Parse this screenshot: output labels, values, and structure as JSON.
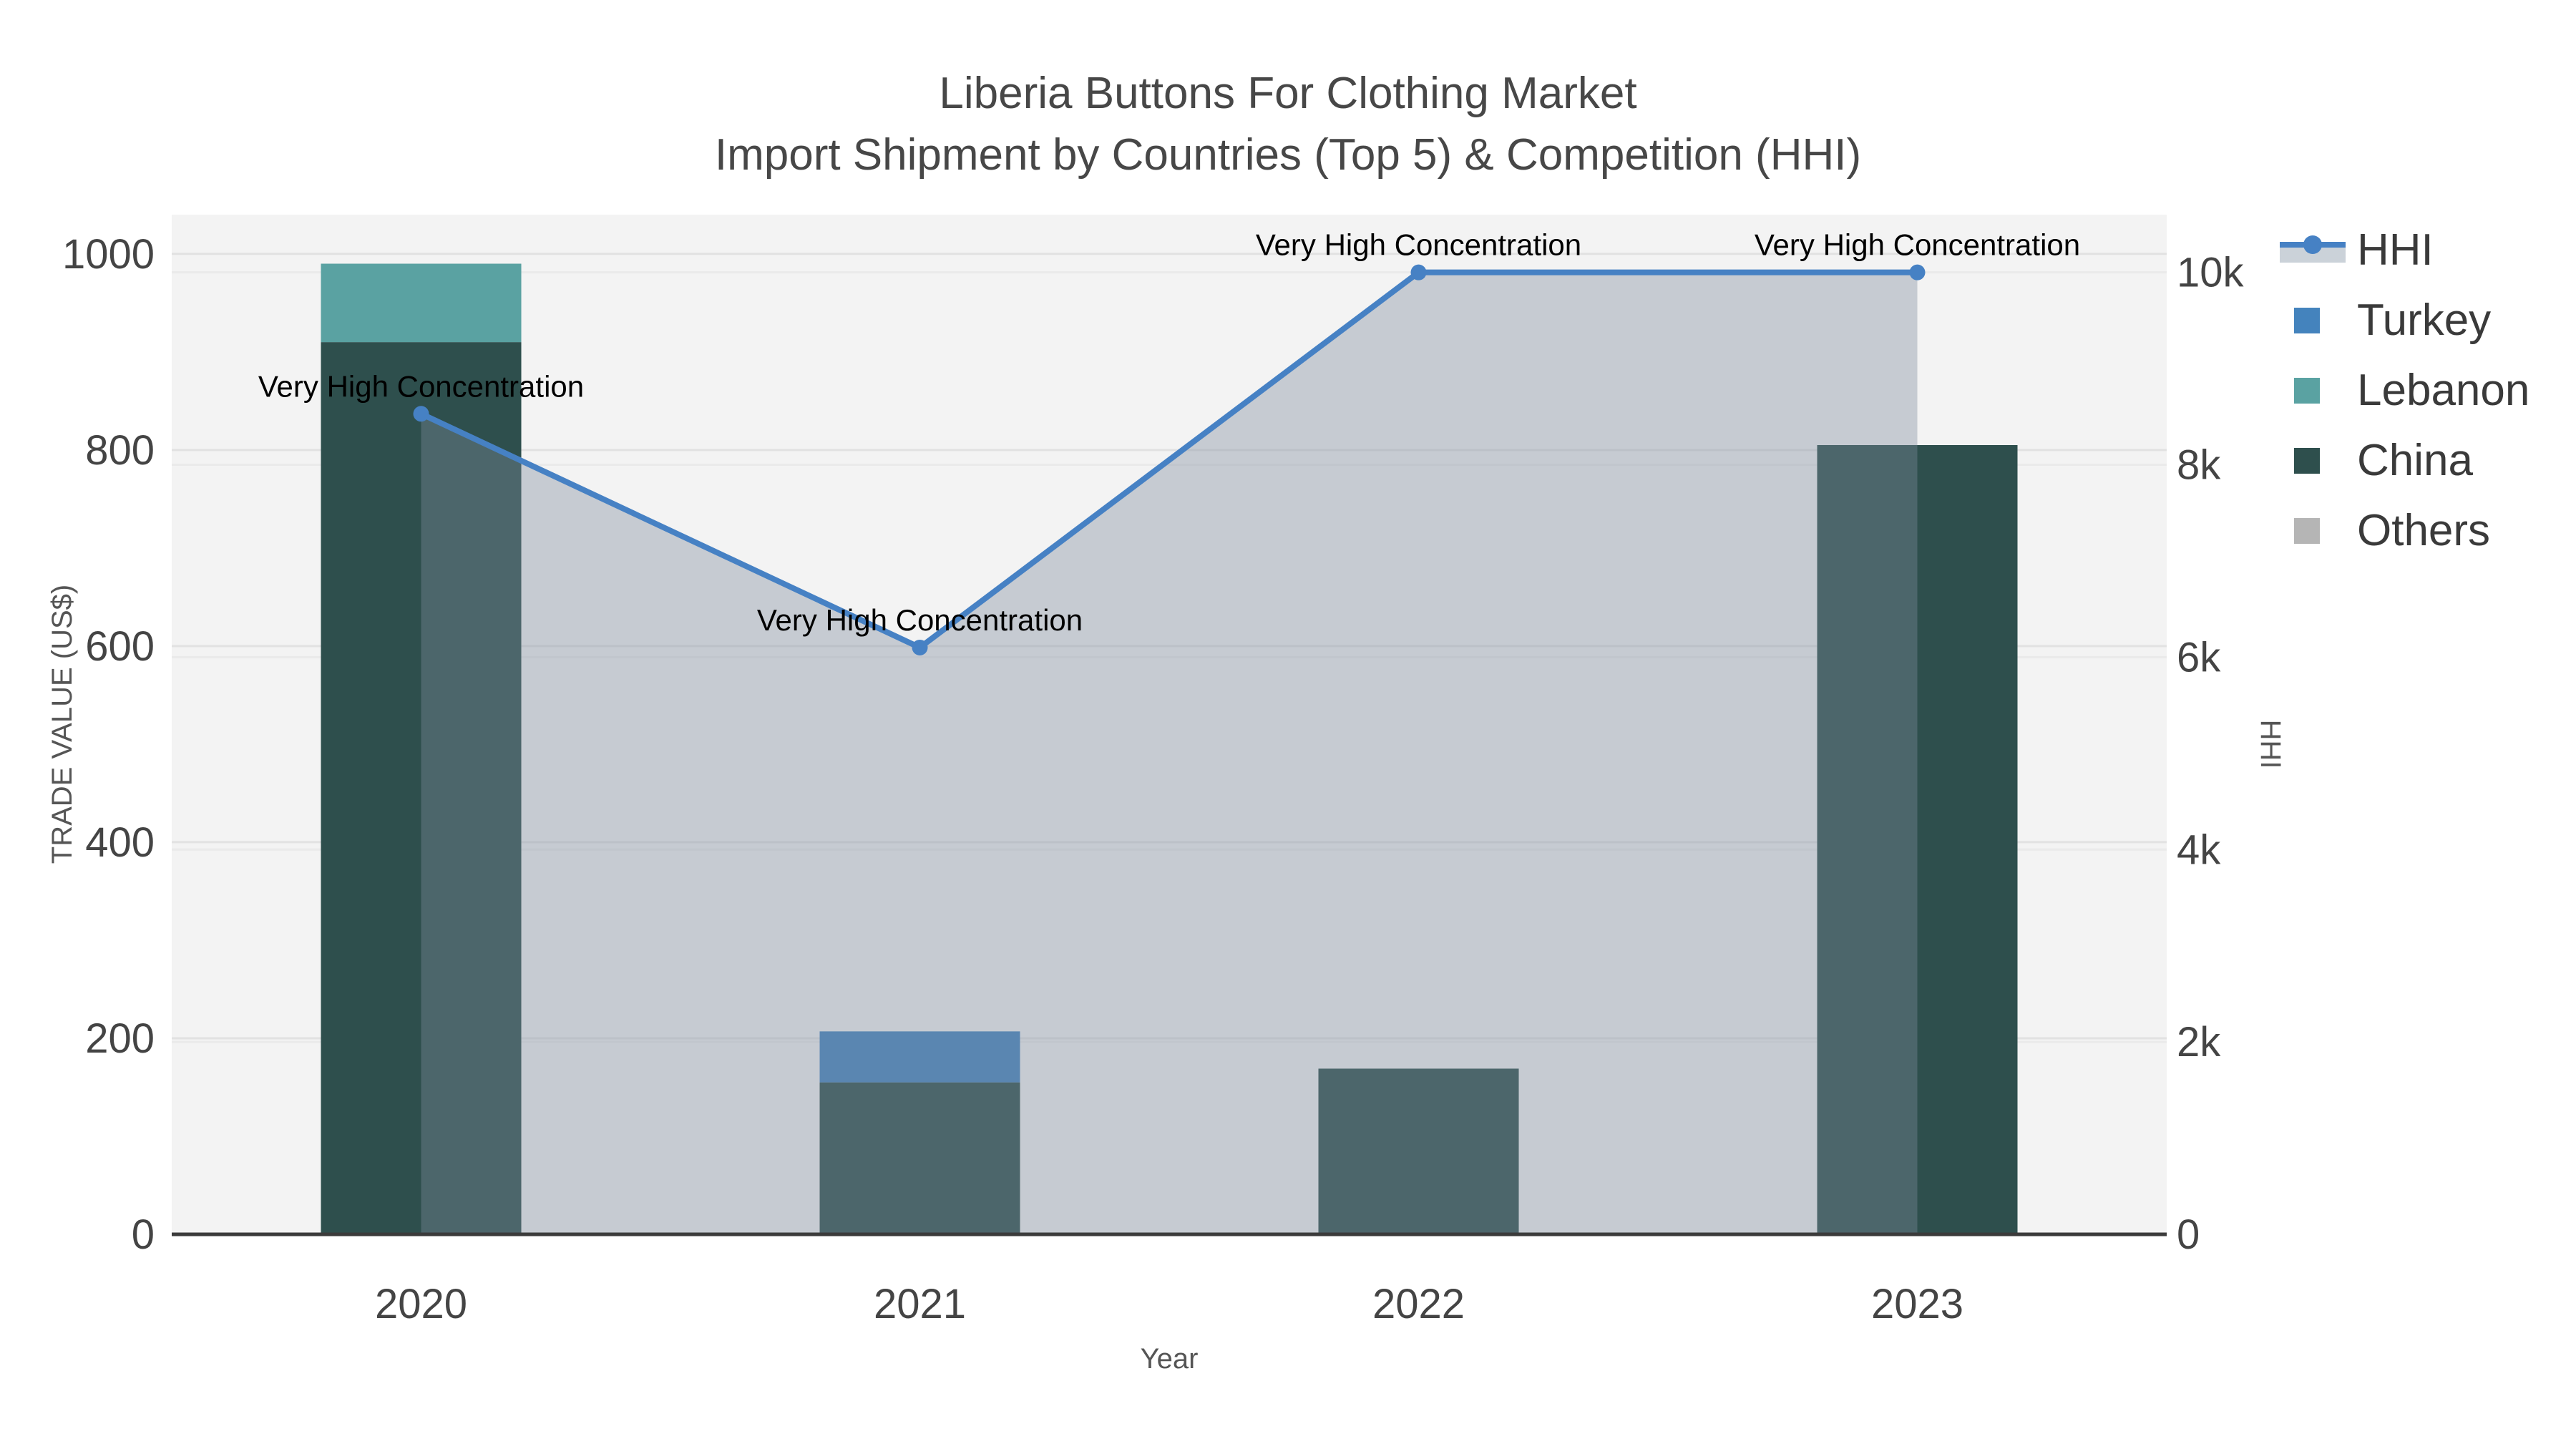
{
  "title": {
    "line1": "Liberia Buttons For Clothing Market",
    "line2": "Import Shipment by Countries (Top 5) & Competition (HHI)"
  },
  "legend": {
    "position": "top-right",
    "items": [
      {
        "label": "HHI",
        "swatch": "line",
        "color": "#4681C4",
        "band": "#CBD2D9"
      },
      {
        "label": "Turkey",
        "swatch": "square",
        "color": "#4483BD"
      },
      {
        "label": "Lebanon",
        "swatch": "square",
        "color": "#5AA2A2"
      },
      {
        "label": "China",
        "swatch": "square",
        "color": "#2E4F4D"
      },
      {
        "label": "Others",
        "swatch": "square",
        "color": "#B5B5B5"
      }
    ]
  },
  "chart_data": {
    "type": "bar+line",
    "categories": [
      "2020",
      "2021",
      "2022",
      "2023"
    ],
    "bar_series": [
      {
        "name": "Turkey",
        "color": "#4483BD",
        "values": [
          0,
          52,
          0,
          0
        ]
      },
      {
        "name": "Lebanon",
        "color": "#5AA2A2",
        "values": [
          80,
          0,
          0,
          0
        ]
      },
      {
        "name": "China",
        "color": "#2E4F4D",
        "values": [
          910,
          155,
          169,
          805
        ]
      },
      {
        "name": "Others",
        "color": "#B5B5B5",
        "values": [
          0,
          0,
          0,
          0
        ]
      }
    ],
    "stack_order_bottom_to_top": [
      "China",
      "Lebanon",
      "Turkey",
      "Others"
    ],
    "line_series": {
      "name": "HHI",
      "color": "#4681C4",
      "area_fill": "rgba(127,140,158,0.38)",
      "values": [
        8530,
        6100,
        10000,
        10000
      ]
    },
    "annotations": [
      {
        "x": "2020",
        "text": "Very High Concentration"
      },
      {
        "x": "2021",
        "text": "Very High Concentration"
      },
      {
        "x": "2022",
        "text": "Very High Concentration"
      },
      {
        "x": "2023",
        "text": "Very High Concentration"
      }
    ],
    "x_axis": {
      "title": "Year"
    },
    "y_left": {
      "title": "TRADE VALUE (US$)",
      "ticks": [
        "0",
        "200",
        "400",
        "600",
        "800",
        "1000"
      ],
      "tick_values": [
        0,
        200,
        400,
        600,
        800,
        1000
      ],
      "range": [
        0,
        1040
      ],
      "grid": true
    },
    "y_right": {
      "title": "HHI",
      "ticks": [
        "0",
        "2k",
        "4k",
        "6k",
        "8k",
        "10k"
      ],
      "tick_values": [
        0,
        2000,
        4000,
        6000,
        8000,
        10000
      ],
      "range": [
        0,
        10600
      ],
      "grid": true
    }
  }
}
